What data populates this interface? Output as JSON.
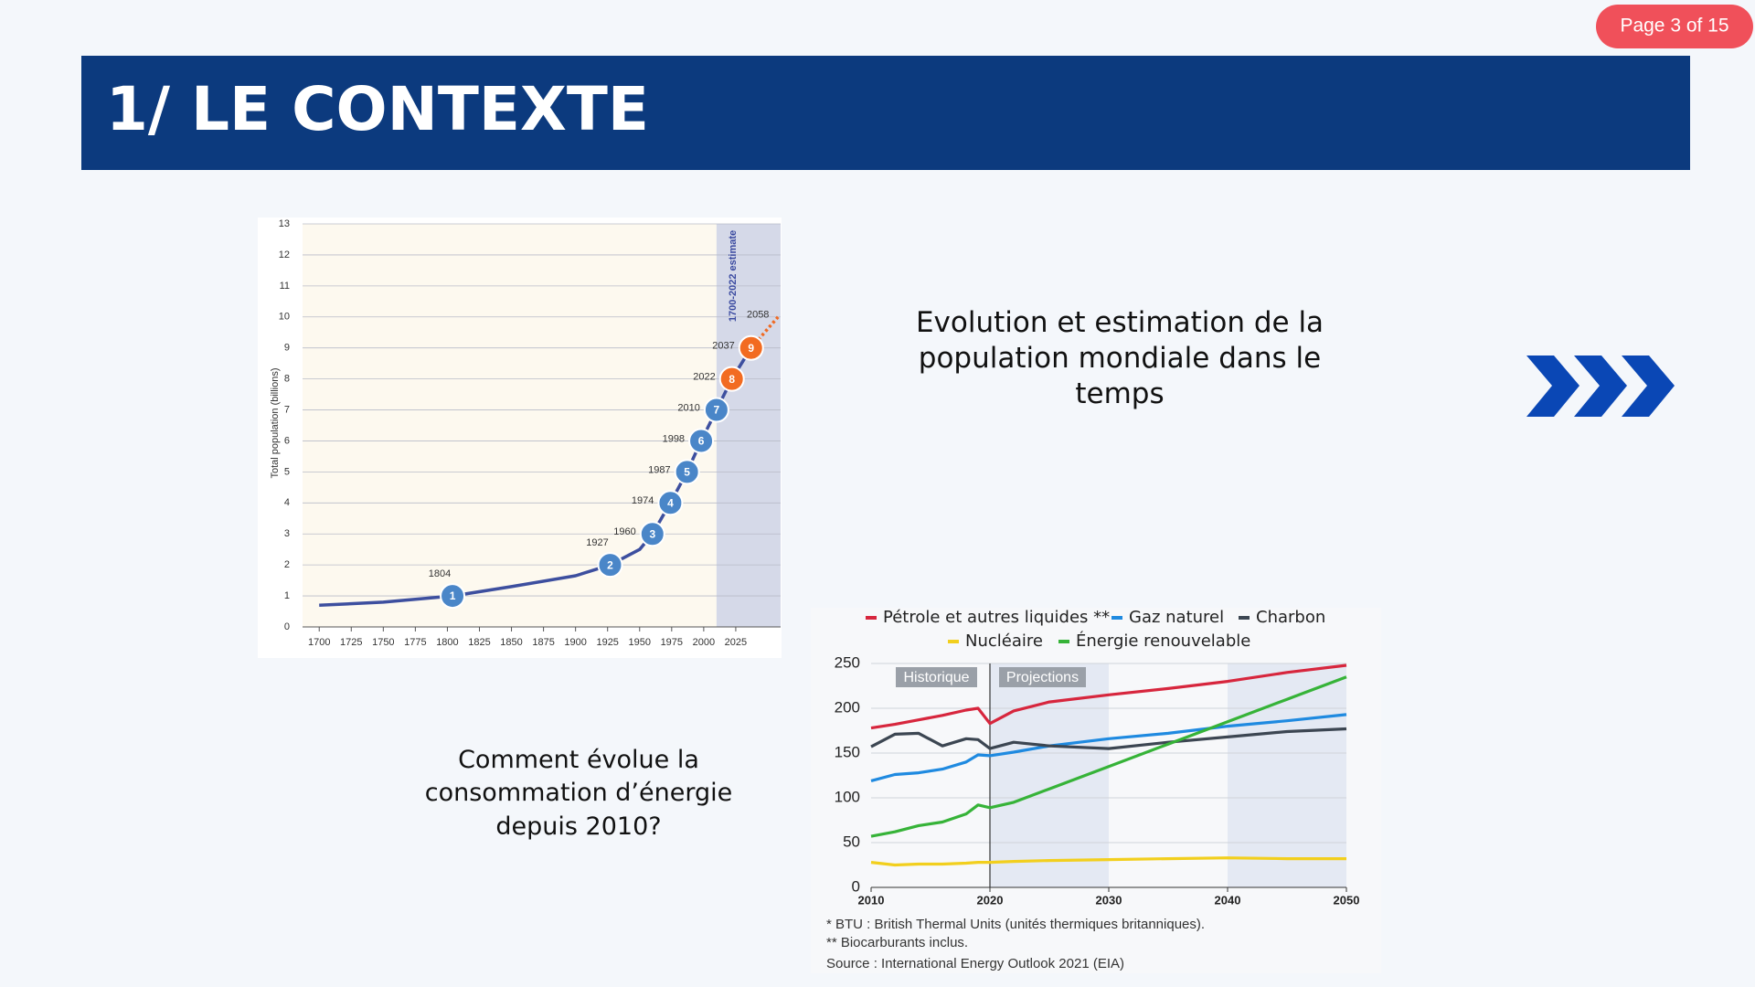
{
  "page_label": "Page 3 of 15",
  "title": "1/ LE CONTEXTE",
  "captions": [
    "Evolution et estimation de la population mondiale dans le temps",
    "Comment évolue la consommation d’énergie depuis 2010?"
  ],
  "chart_data": [
    {
      "type": "line",
      "y_label": "Total population (billions)",
      "annotation": "1700-2022 estimate",
      "xlim": [
        1687,
        2060
      ],
      "ylim": [
        0,
        13
      ],
      "xticks": [
        1700,
        1725,
        1750,
        1775,
        1800,
        1825,
        1850,
        1875,
        1900,
        1925,
        1950,
        1975,
        2000,
        2025
      ],
      "yticks": [
        0,
        1,
        2,
        3,
        4,
        5,
        6,
        7,
        8,
        9,
        10,
        11,
        12,
        13
      ],
      "grid": true,
      "shaded_xrange": [
        2010,
        2060
      ],
      "series": [
        {
          "color": "#3d4f9f",
          "x": [
            1700,
            1750,
            1804,
            1850,
            1900,
            1927,
            1950,
            1960,
            1974,
            1987,
            1998,
            2010,
            2022,
            2037
          ],
          "values": [
            0.7,
            0.8,
            1,
            1.3,
            1.65,
            2,
            2.5,
            3,
            4,
            5,
            6,
            7,
            8,
            9
          ]
        },
        {
          "color": "#f06a23",
          "style": "dotted",
          "x": [
            2037,
            2058
          ],
          "values": [
            9,
            10
          ]
        }
      ],
      "milestones": {
        "x": [
          1804,
          1927,
          1960,
          1974,
          1987,
          1998,
          2010,
          2022,
          2037
        ],
        "values": [
          1,
          2,
          3,
          4,
          5,
          6,
          7,
          8,
          9
        ],
        "colors": [
          "#4a86c8",
          "#4a86c8",
          "#4a86c8",
          "#4a86c8",
          "#4a86c8",
          "#4a86c8",
          "#4a86c8",
          "#f26b21",
          "#f26b21"
        ]
      }
    },
    {
      "type": "line",
      "xlim": [
        2010,
        2050
      ],
      "ylim": [
        0,
        250
      ],
      "xticks": [
        2010,
        2020,
        2030,
        2040,
        2050
      ],
      "yticks": [
        0,
        50,
        100,
        150,
        200,
        250
      ],
      "grid": true,
      "annotations": [
        "Historique",
        "Projections"
      ],
      "shaded_xranges": [
        [
          2020,
          2030
        ],
        [
          2040,
          2050
        ]
      ],
      "divider_x": 2020,
      "x": [
        2010,
        2012,
        2014,
        2016,
        2018,
        2019,
        2020,
        2022,
        2025,
        2030,
        2035,
        2040,
        2045,
        2050
      ],
      "series": [
        {
          "name": "Pétrole et autres liquides **",
          "color": "#d7263d",
          "values": [
            178,
            182,
            187,
            192,
            198,
            200,
            183,
            197,
            207,
            215,
            222,
            230,
            240,
            248
          ]
        },
        {
          "name": "Gaz naturel",
          "color": "#1f8ae0",
          "values": [
            119,
            126,
            128,
            132,
            140,
            148,
            147,
            151,
            158,
            166,
            172,
            180,
            186,
            193
          ]
        },
        {
          "name": "Charbon",
          "color": "#3c4652",
          "values": [
            157,
            171,
            172,
            158,
            166,
            165,
            155,
            162,
            158,
            155,
            162,
            168,
            174,
            177
          ]
        },
        {
          "name": "Nucléaire",
          "color": "#f2cf1d",
          "values": [
            28,
            25,
            26,
            26,
            27,
            28,
            28,
            29,
            30,
            31,
            32,
            33,
            32,
            32
          ]
        },
        {
          "name": "Énergie renouvelable",
          "color": "#36b338",
          "values": [
            57,
            62,
            69,
            73,
            82,
            92,
            89,
            95,
            110,
            135,
            160,
            185,
            210,
            235
          ]
        }
      ],
      "notes": [
        "*   BTU : British Thermal Units (unités thermiques britanniques).",
        "** Biocarburants inclus.",
        "Source : International Energy Outlook 2021 (EIA)"
      ]
    }
  ]
}
